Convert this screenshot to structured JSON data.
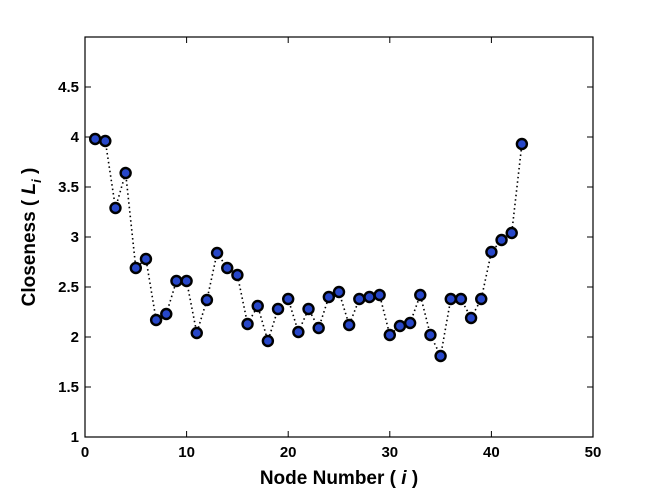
{
  "chart_data": {
    "type": "scatter",
    "xlabel_main": "Node Number ( ",
    "xlabel_var": "i",
    "xlabel_close": " )",
    "ylabel_main": "Closeness ( ",
    "ylabel_var": "L",
    "ylabel_sub": "i",
    "ylabel_close": " )",
    "xlim": [
      0,
      50
    ],
    "ylim": [
      1,
      5
    ],
    "x_ticks": [
      0,
      10,
      20,
      30,
      40,
      50
    ],
    "y_ticks": [
      1,
      1.5,
      2,
      2.5,
      3,
      3.5,
      4,
      4.5
    ],
    "y_tick_labels": [
      "1",
      "1.5",
      "2",
      "2.5",
      "3",
      "3.5",
      "4",
      "4.5"
    ],
    "grid": false,
    "line_style": "dotted",
    "marker": "circle",
    "colors": {
      "marker_fill": "#2747c9",
      "marker_edge": "#000000",
      "line": "#000000"
    },
    "series": [
      {
        "x": [
          1,
          2,
          3,
          4,
          5,
          6,
          7,
          8,
          9,
          10,
          11,
          12,
          13,
          14,
          15,
          16,
          17,
          18,
          19,
          20,
          21,
          22,
          23,
          24,
          25,
          26,
          27,
          28,
          29,
          30,
          31,
          32,
          33,
          34,
          35,
          36,
          37,
          38,
          39,
          40,
          41,
          42,
          43
        ],
        "values": [
          3.98,
          3.96,
          3.29,
          3.64,
          2.69,
          2.78,
          2.17,
          2.23,
          2.56,
          2.56,
          2.04,
          2.37,
          2.84,
          2.69,
          2.62,
          2.13,
          2.31,
          1.96,
          2.28,
          2.38,
          2.05,
          2.28,
          2.09,
          2.4,
          2.45,
          2.12,
          2.38,
          2.4,
          2.42,
          2.02,
          2.11,
          2.14,
          2.42,
          2.02,
          1.81,
          2.38,
          2.38,
          2.19,
          2.38,
          2.85,
          2.97,
          3.04,
          3.93
        ]
      }
    ]
  }
}
